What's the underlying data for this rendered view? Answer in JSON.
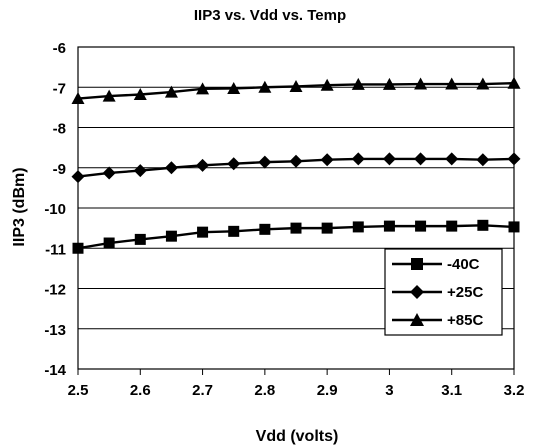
{
  "chart_data": {
    "type": "line",
    "title": "IIP3 vs. Vdd vs. Temp",
    "xlabel": "Vdd (volts)",
    "ylabel": "IIP3 (dBm)",
    "xlim": [
      2.5,
      3.2
    ],
    "ylim": [
      -14,
      -6
    ],
    "x_ticks": [
      "2.5",
      "2.6",
      "2.7",
      "2.8",
      "2.9",
      "3",
      "3.1",
      "3.2"
    ],
    "y_ticks": [
      "-6",
      "-7",
      "-8",
      "-9",
      "-10",
      "-11",
      "-12",
      "-13",
      "-14"
    ],
    "grid": "horizontal",
    "legend_position": "bottom-right",
    "x": [
      2.5,
      2.55,
      2.6,
      2.65,
      2.7,
      2.75,
      2.8,
      2.85,
      2.9,
      2.95,
      3.0,
      3.05,
      3.1,
      3.15,
      3.2
    ],
    "series": [
      {
        "name": "-40C",
        "marker": "square",
        "color": "#000000",
        "values": [
          -11.0,
          -10.87,
          -10.78,
          -10.7,
          -10.6,
          -10.58,
          -10.53,
          -10.5,
          -10.5,
          -10.47,
          -10.45,
          -10.45,
          -10.45,
          -10.43,
          -10.47
        ]
      },
      {
        "name": "+25C",
        "marker": "diamond",
        "color": "#000000",
        "values": [
          -9.22,
          -9.13,
          -9.07,
          -9.0,
          -8.94,
          -8.9,
          -8.86,
          -8.84,
          -8.8,
          -8.78,
          -8.78,
          -8.78,
          -8.78,
          -8.8,
          -8.78
        ]
      },
      {
        "name": "+85C",
        "marker": "triangle",
        "color": "#000000",
        "values": [
          -7.28,
          -7.22,
          -7.18,
          -7.12,
          -7.04,
          -7.03,
          -7.0,
          -6.98,
          -6.95,
          -6.93,
          -6.93,
          -6.92,
          -6.92,
          -6.92,
          -6.9
        ]
      }
    ]
  }
}
